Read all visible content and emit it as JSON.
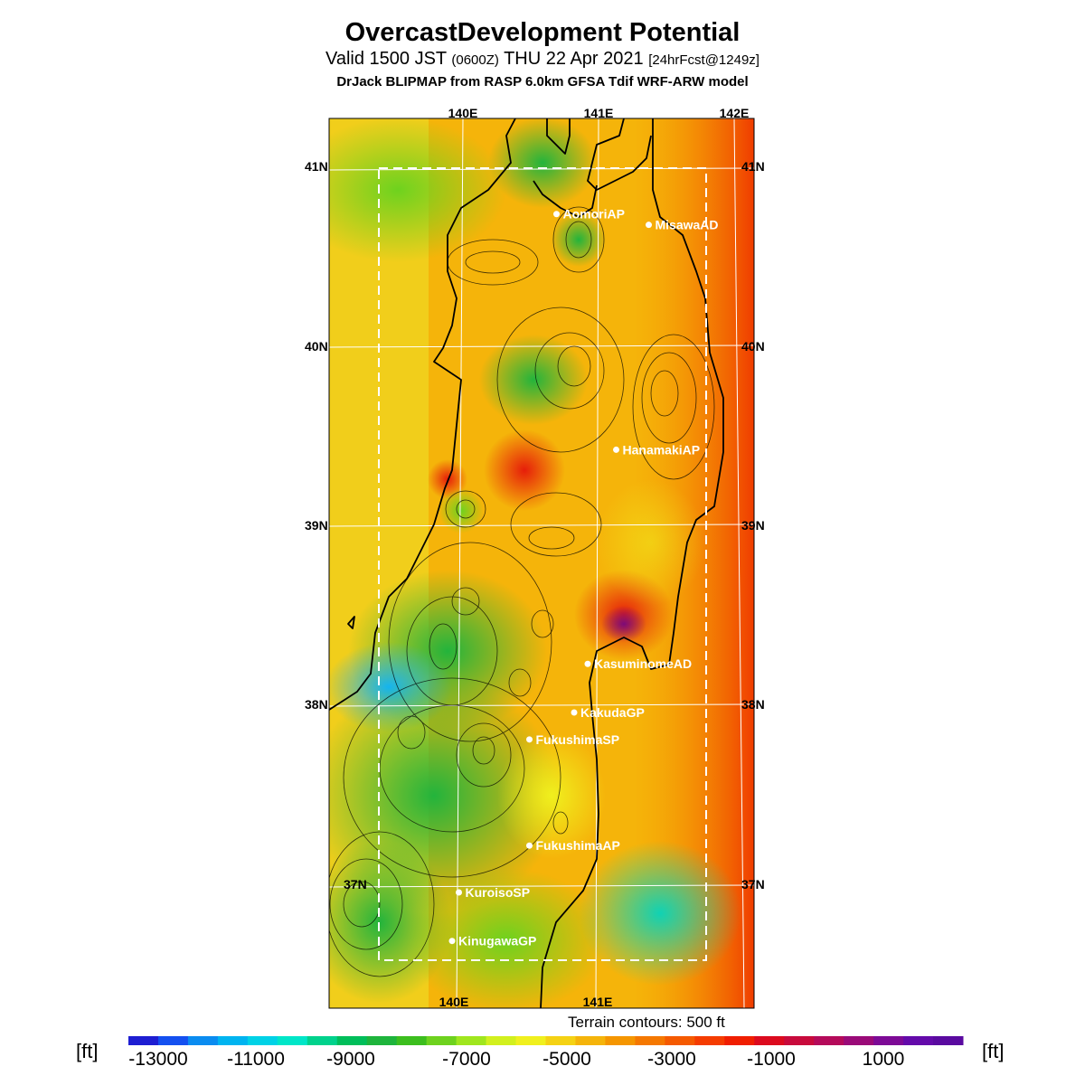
{
  "header": {
    "title": "OvercastDevelopment Potential",
    "valid_prefix": "Valid 1500 JST",
    "valid_utc": "(0600Z)",
    "valid_date": "THU 22 Apr 2021",
    "forecast": "[24hrFcst@1249z]",
    "model": "DrJack BLIPMAP from RASP 6.0km GFSA Tdif WRF-ARW model"
  },
  "map": {
    "lon_top": [
      "140E",
      "141E",
      "142E"
    ],
    "lon_bottom": [
      "140E",
      "141E"
    ],
    "lat_left": [
      "41N",
      "40N",
      "39N",
      "38N",
      "37N"
    ],
    "lat_right": [
      "41N",
      "40N",
      "39N",
      "38N",
      "37N"
    ],
    "stations": [
      {
        "name": "AomoriAP",
        "lon": 140.69,
        "lat": 40.74
      },
      {
        "name": "MisawaAD",
        "lon": 141.37,
        "lat": 40.68
      },
      {
        "name": "HanamakiAP",
        "lon": 141.13,
        "lat": 39.43
      },
      {
        "name": "KasuminomeAD",
        "lon": 140.92,
        "lat": 38.24
      },
      {
        "name": "KakudaGP",
        "lon": 140.82,
        "lat": 37.97
      },
      {
        "name": "FukushimaSP",
        "lon": 140.49,
        "lat": 37.82
      },
      {
        "name": "FukushimaAP",
        "lon": 140.49,
        "lat": 37.23
      },
      {
        "name": "KuroisoSP",
        "lon": 139.97,
        "lat": 36.97
      },
      {
        "name": "KinugawaGP",
        "lon": 139.92,
        "lat": 36.7
      }
    ],
    "terrain_note": "Terrain contours: 500 ft",
    "colors": {
      "sea_fill": "#f3b40a",
      "land_fill": "#e9c21a",
      "low": "#18b8a0",
      "high": "#e23a10",
      "coast": "#000000",
      "grid": "#ffffff"
    }
  },
  "colorbar": {
    "unit_left": "[ft]",
    "unit_right": "[ft]",
    "tick_labels": [
      "-13000",
      "-11000",
      "-9000",
      "-7000",
      "-5000",
      "-3000",
      "-1000",
      "1000"
    ],
    "colors": [
      "#1e1ed2",
      "#1450f0",
      "#0a8cf0",
      "#00b4f0",
      "#00d2e6",
      "#00e6c8",
      "#00d28c",
      "#00be5a",
      "#1eb43c",
      "#3cbe1e",
      "#6ed21e",
      "#a0e61e",
      "#d2f01e",
      "#f0f01e",
      "#f5d214",
      "#f5b40a",
      "#f59600",
      "#f57800",
      "#f55a00",
      "#f53c00",
      "#f01e00",
      "#dc0a1e",
      "#c80a3c",
      "#b40a5a",
      "#9a0a78",
      "#7d0a96",
      "#640aaa",
      "#5a0aa0"
    ]
  }
}
